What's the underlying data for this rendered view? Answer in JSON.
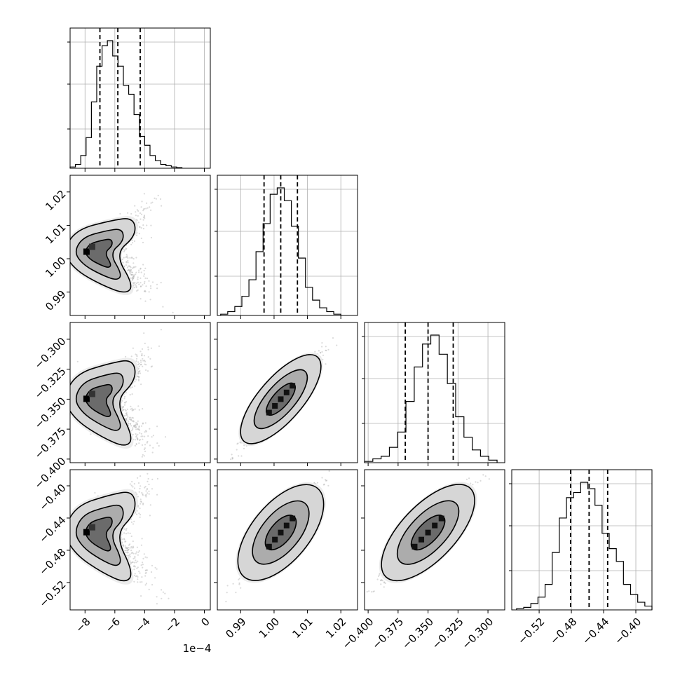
{
  "chart_data": {
    "type": "corner",
    "grid": true,
    "colors": {
      "line": "#000000",
      "grid": "#b0b0b0",
      "fill_dark": "#000000",
      "fill_light": "#f0f0f0",
      "points": "#999999"
    },
    "parameters": [
      {
        "id": "p1",
        "range": [
          -9.0,
          0.4
        ],
        "hist_ticks": [
          -8,
          -6,
          -4,
          -2,
          0
        ],
        "ticks": [
          -8,
          -6,
          -4,
          -2,
          0
        ],
        "tick_labels": [
          "−8",
          "−6",
          "−4",
          "−2",
          "0"
        ],
        "offset_label": "1e−4",
        "quantiles": [
          -7.0,
          -5.8,
          -4.3
        ],
        "mean": -6.0,
        "sd": 1.25,
        "hist_bins": [
          0.01,
          0.03,
          0.1,
          0.24,
          0.52,
          0.8,
          0.96,
          1.0,
          0.88,
          0.8,
          0.65,
          0.58,
          0.42,
          0.25,
          0.18,
          0.1,
          0.06,
          0.03,
          0.02,
          0.01,
          0.005
        ]
      },
      {
        "id": "p2",
        "range": [
          0.983,
          1.025
        ],
        "ticks": [
          0.99,
          1.0,
          1.01,
          1.02
        ],
        "tick_labels": [
          "0.99",
          "1.00",
          "1.01",
          "1.02"
        ],
        "quantiles": [
          0.997,
          1.002,
          1.007
        ],
        "mean": 1.002,
        "sd": 0.005,
        "hist_bins": [
          0.01,
          0.03,
          0.07,
          0.15,
          0.28,
          0.5,
          0.72,
          0.95,
          1.0,
          0.9,
          0.7,
          0.45,
          0.22,
          0.12,
          0.06,
          0.03,
          0.01
        ]
      },
      {
        "id": "p3",
        "range": [
          -0.403,
          -0.286
        ],
        "ticks": [
          -0.4,
          -0.375,
          -0.35,
          -0.325,
          -0.3
        ],
        "tick_labels": [
          "−0.400",
          "−0.375",
          "−0.350",
          "−0.325",
          "−0.300"
        ],
        "quantiles": [
          -0.369,
          -0.35,
          -0.329
        ],
        "mean": -0.35,
        "sd": 0.016,
        "hist_bins": [
          0.01,
          0.03,
          0.05,
          0.12,
          0.24,
          0.48,
          0.75,
          0.93,
          1.0,
          0.85,
          0.62,
          0.36,
          0.2,
          0.1,
          0.05,
          0.02
        ]
      },
      {
        "id": "p4",
        "range": [
          -0.554,
          -0.38
        ],
        "ticks": [
          -0.52,
          -0.48,
          -0.44,
          -0.4
        ],
        "tick_labels": [
          "−0.52",
          "−0.48",
          "−0.44",
          "−0.40"
        ],
        "quantiles": [
          -0.481,
          -0.458,
          -0.435
        ],
        "mean": -0.458,
        "sd": 0.025,
        "hist_bins": [
          0.01,
          0.02,
          0.05,
          0.1,
          0.2,
          0.45,
          0.72,
          0.88,
          0.92,
          1.0,
          0.95,
          0.82,
          0.6,
          0.48,
          0.38,
          0.2,
          0.12,
          0.06,
          0.03
        ]
      }
    ],
    "joint": [
      {
        "row": 1,
        "col": 0,
        "shape": "bend"
      },
      {
        "row": 2,
        "col": 0,
        "shape": "bend"
      },
      {
        "row": 2,
        "col": 1,
        "shape": "ellipse",
        "rho": 0.97
      },
      {
        "row": 3,
        "col": 0,
        "shape": "bend"
      },
      {
        "row": 3,
        "col": 1,
        "shape": "ellipse",
        "rho": 0.95
      },
      {
        "row": 3,
        "col": 2,
        "shape": "ellipse",
        "rho": 0.96
      }
    ]
  }
}
